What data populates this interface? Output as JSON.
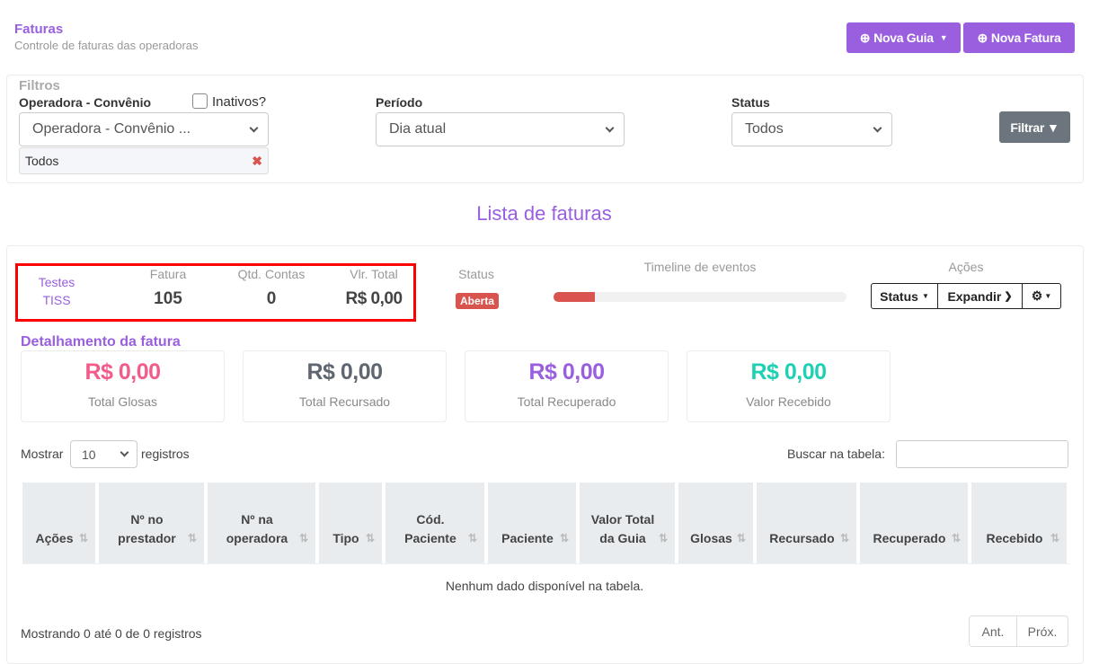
{
  "header": {
    "title": "Faturas",
    "subtitle": "Controle de faturas das operadoras",
    "nova_guia": "Nova Guia",
    "nova_fatura": "Nova Fatura"
  },
  "filters": {
    "title": "Filtros",
    "operadora_label": "Operadora - Convênio",
    "inativos_label": "Inativos?",
    "inativos_checked": false,
    "operadora_value": "Operadora - Convênio ...",
    "tag": "Todos",
    "periodo_label": "Período",
    "periodo_value": "Dia atual",
    "status_label": "Status",
    "status_value": "Todos",
    "filtrar": "Filtrar"
  },
  "list_title": "Lista de faturas",
  "invoice": {
    "operadora_line1": "Testes",
    "operadora_line2": "TISS",
    "fatura_label": "Fatura",
    "fatura": "105",
    "qtd_label": "Qtd. Contas",
    "qtd": "0",
    "vlr_label": "Vlr. Total",
    "vlr": "R$ 0,00",
    "status_label": "Status",
    "status": "Aberta",
    "timeline_label": "Timeline de eventos",
    "timeline_progress_percent": 14,
    "acoes_label": "Ações",
    "btn_status": "Status",
    "btn_expandir": "Expandir",
    "colors": {
      "badge": "#d9534f",
      "highlight_box": "#ff0000"
    }
  },
  "detail": {
    "title": "Detalhamento da fatura",
    "cards": [
      {
        "value": "R$ 0,00",
        "label": "Total Glosas",
        "color": "#f25c8a"
      },
      {
        "value": "R$ 0,00",
        "label": "Total Recursado",
        "color": "#5f6670"
      },
      {
        "value": "R$ 0,00",
        "label": "Total Recuperado",
        "color": "#9a5fdf"
      },
      {
        "value": "R$ 0,00",
        "label": "Valor Recebido",
        "color": "#1fd1b3"
      }
    ]
  },
  "table": {
    "show_label": "Mostrar",
    "show_value": "10",
    "records_label": "registros",
    "search_label": "Buscar na tabela:",
    "search_value": "",
    "columns": [
      "Ações",
      "Nº no prestador",
      "Nº na operadora",
      "Tipo",
      "Cód. Paciente",
      "Paciente",
      "Valor Total da Guia",
      "Glosas",
      "Recursado",
      "Recuperado",
      "Recebido"
    ],
    "empty": "Nenhum dado disponível na tabela.",
    "info": "Mostrando 0 até 0 de 0 registros",
    "prev": "Ant.",
    "next": "Próx."
  }
}
